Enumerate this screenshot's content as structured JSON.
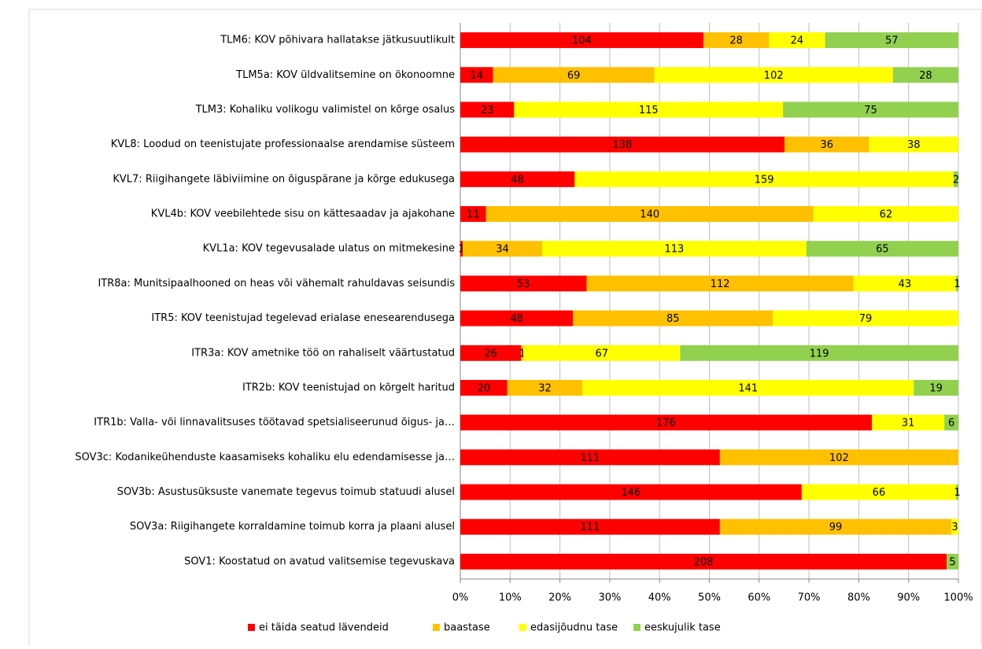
{
  "chart_data": {
    "type": "stacked-bar-100",
    "categories": [
      "TLM6: KOV põhivara hallatakse jätkusuutlikult",
      "TLM5a: KOV üldvalitsemine on ökonoomne",
      "TLM3: Kohaliku volikogu valimistel on kõrge osalus",
      "KVL8: Loodud on teenistujate professionaalse arendamise süsteem",
      "KVL7: Riigihangete läbiviimine on õiguspärane ja kõrge edukusega",
      "KVL4b: KOV veebilehtede sisu on kättesaadav ja ajakohane",
      "KVL1a: KOV tegevusalade ulatus on mitmekesine",
      "ITR8a: Munitsipaalhooned on heas või vähemalt rahuldavas seisundis",
      "ITR5: KOV teenistujad tegelevad erialase enesearendusega",
      "ITR3a: KOV ametnike töö on rahaliselt väärtustatud",
      "ITR2b: KOV teenistujad on kõrgelt haritud",
      "ITR1b: Valla- või linnavalitsuses töötavad spetsialiseerunud õigus- ja…",
      "SOV3c: Kodanikeühenduste kaasamiseks kohaliku elu edendamisesse ja…",
      "SOV3b: Asustusüksuste vanemate tegevus toimub statuudi alusel",
      "SOV3a: Riigihangete korraldamine toimub korra ja plaani alusel",
      "SOV1: Koostatud on avatud valitsemise tegevuskava"
    ],
    "series": [
      {
        "name": "ei täida seatud lävendeid",
        "color": "#ff0000",
        "values": [
          104,
          14,
          23,
          138,
          48,
          11,
          1,
          53,
          48,
          26,
          20,
          176,
          111,
          146,
          111,
          208
        ]
      },
      {
        "name": "baastase",
        "color": "#ffc000",
        "values": [
          28,
          69,
          null,
          36,
          null,
          140,
          34,
          112,
          85,
          1,
          32,
          null,
          102,
          null,
          99,
          null
        ]
      },
      {
        "name": "edasijõudnu tase",
        "color": "#ffff00",
        "values": [
          24,
          102,
          115,
          38,
          159,
          62,
          113,
          43,
          79,
          67,
          141,
          31,
          null,
          66,
          3,
          null
        ]
      },
      {
        "name": "eeskujulik tase",
        "color": "#92d050",
        "values": [
          57,
          28,
          75,
          null,
          2,
          null,
          65,
          1,
          null,
          119,
          19,
          6,
          null,
          1,
          null,
          5
        ]
      }
    ],
    "xlim": [
      0,
      100
    ],
    "xticks": [
      {
        "value": 0,
        "label": "0%"
      },
      {
        "value": 10,
        "label": "10%"
      },
      {
        "value": 20,
        "label": "20%"
      },
      {
        "value": 30,
        "label": "30%"
      },
      {
        "value": 40,
        "label": "40%"
      },
      {
        "value": 50,
        "label": "50%"
      },
      {
        "value": 60,
        "label": "60%"
      },
      {
        "value": 70,
        "label": "70%"
      },
      {
        "value": 80,
        "label": "80%"
      },
      {
        "value": 90,
        "label": "90%"
      },
      {
        "value": 100,
        "label": "100%"
      }
    ],
    "grid": true,
    "legend": "bottom"
  }
}
